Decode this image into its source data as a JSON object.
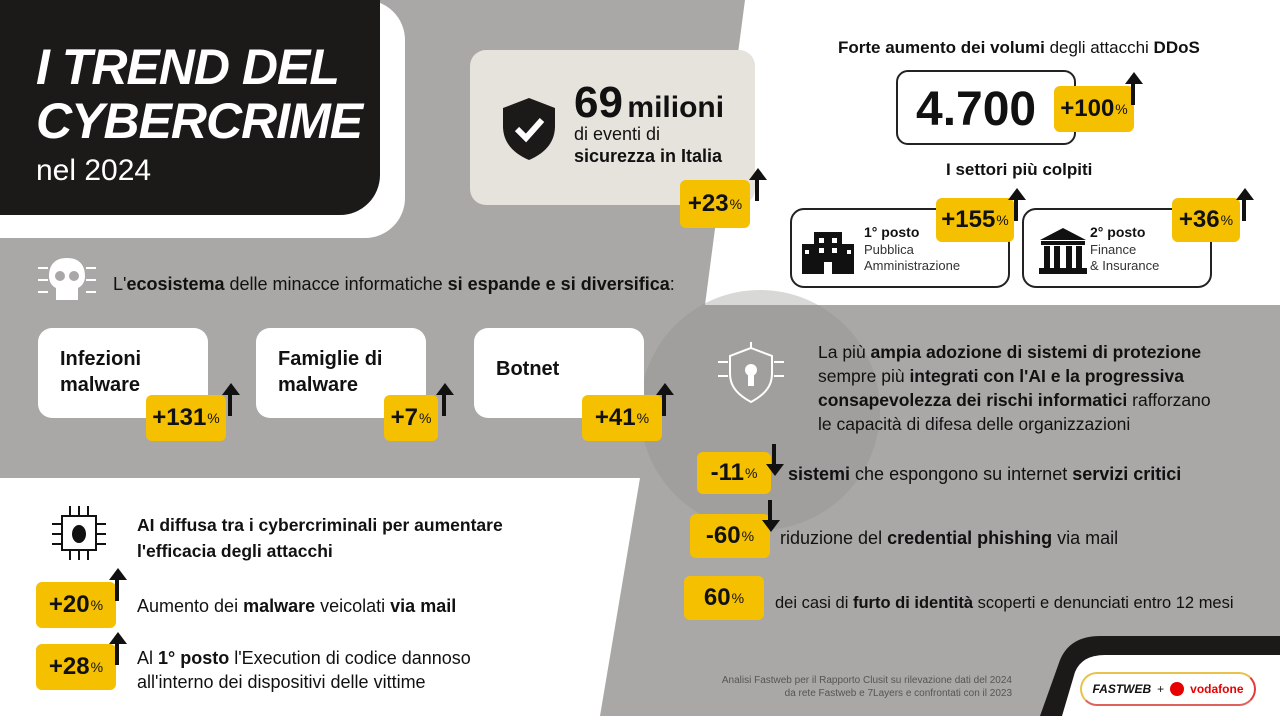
{
  "title": {
    "line1": "I TREND DEL",
    "line2": "CYBERCRIME",
    "line3": "nel 2024"
  },
  "events": {
    "number": "69",
    "unit": "milioni",
    "line1": "di eventi di",
    "line2": "sicurezza in Italia",
    "badge": "+23",
    "pct": "%"
  },
  "ddos": {
    "head_b1": "Forte aumento dei volumi",
    "head_n": " degli attacchi ",
    "head_b2": "DDoS",
    "value": "4.700",
    "badge": "+100",
    "pct": "%"
  },
  "sectors": {
    "title": "I settori più colpiti",
    "items": [
      {
        "rank": "1° posto",
        "name1": "Pubblica",
        "name2": "Amministrazione",
        "badge": "+155",
        "pct": "%"
      },
      {
        "rank": "2° posto",
        "name1": "Finance",
        "name2": "& Insurance",
        "badge": "+36",
        "pct": "%"
      }
    ]
  },
  "ecosystem": {
    "p1": "L'",
    "b1": "ecosistema",
    "p2": " delle minacce informatiche ",
    "b2": "si espande e si diversifica",
    "p3": ":",
    "cards": [
      {
        "l1": "Infezioni",
        "l2": "malware",
        "badge": "+131",
        "pct": "%"
      },
      {
        "l1": "Famiglie di",
        "l2": "malware",
        "badge": "+7",
        "pct": "%"
      },
      {
        "l1": "Botnet",
        "l2": "",
        "badge": "+41",
        "pct": "%"
      }
    ]
  },
  "protection": {
    "p1": "La più ",
    "b1": "ampia adozione di sistemi di protezione",
    "p2": "sempre più ",
    "b2": "integrati con l'AI e la progressiva",
    "b3": "consapevolezza dei rischi informatici",
    "p3": " rafforzano",
    "p4": "le capacità di difesa delle organizzazioni",
    "stats": [
      {
        "badge": "-11",
        "pct": "%",
        "b1": "sistemi",
        "n1": " che espongono su internet ",
        "b2": "servizi critici",
        "n2": ""
      },
      {
        "badge": "-60",
        "pct": "%",
        "b1": "",
        "n1": "riduzione del ",
        "b2": "credential phishing",
        "n2": " via mail"
      },
      {
        "badge": "60",
        "pct": "%",
        "b1": "",
        "n1": "dei casi di ",
        "b2": "furto di identità",
        "n2": " scoperti e denunciati entro 12 mesi"
      }
    ]
  },
  "ai": {
    "head1": "AI diffusa tra i cybercriminali per aumentare",
    "head2": "l'efficacia degli attacchi",
    "items": [
      {
        "badge": "+20",
        "pct": "%",
        "n1": "Aumento dei ",
        "b1": "malware",
        "n2": " veicolati ",
        "b2": "via mail",
        "n3": ""
      },
      {
        "badge": "+28",
        "pct": "%",
        "n1": "Al ",
        "b1": "1° posto",
        "n2": " l'Execution di codice dannoso",
        "b2": "",
        "n3": "all'interno dei dispositivi delle vittime"
      }
    ]
  },
  "footer": {
    "line1": "Analisi Fastweb per il Rapporto Clusit su rilevazione dati del 2024",
    "line2": "da rete Fastweb e 7Layers e confrontati con il 2023"
  },
  "logo": {
    "fastweb": "FASTWEB",
    "plus": "+",
    "vodafone": "vodafone"
  },
  "colors": {
    "yellow": "#f5c000",
    "gray": "#a9a8a6",
    "dark": "#1b1a19"
  }
}
